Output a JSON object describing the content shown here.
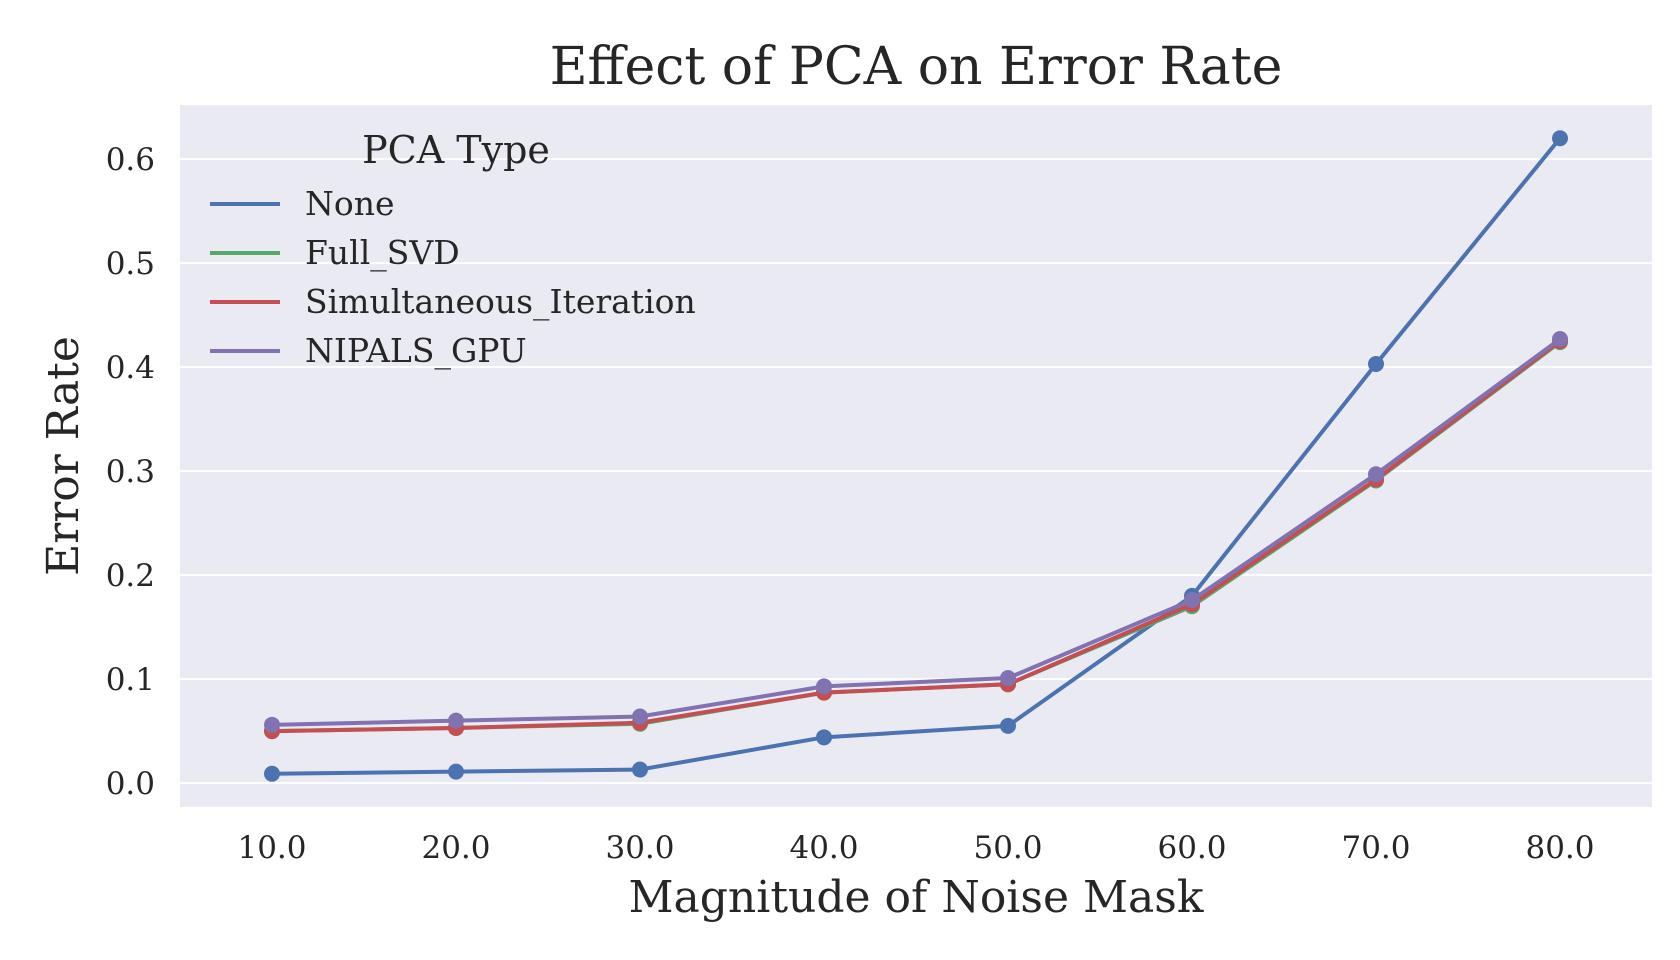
{
  "chart_data": {
    "type": "line",
    "title": "Effect of PCA on Error Rate",
    "xlabel": "Magnitude of Noise Mask",
    "ylabel": "Error Rate",
    "categories": [
      "10.0",
      "20.0",
      "30.0",
      "40.0",
      "50.0",
      "60.0",
      "70.0",
      "80.0"
    ],
    "ylim": [
      -0.023,
      0.652
    ],
    "yticks": [
      "0.0",
      "0.1",
      "0.2",
      "0.3",
      "0.4",
      "0.5",
      "0.6"
    ],
    "grid": true,
    "legend": {
      "title": "PCA Type",
      "placement": "top-left"
    },
    "series": [
      {
        "name": "None",
        "color": "#4c72b0",
        "values": [
          0.009,
          0.011,
          0.013,
          0.044,
          0.055,
          0.18,
          0.403,
          0.62
        ]
      },
      {
        "name": "Full_SVD",
        "color": "#55a868",
        "values": [
          0.05,
          0.053,
          0.057,
          0.087,
          0.095,
          0.17,
          0.291,
          0.424
        ]
      },
      {
        "name": "Simultaneous_Iteration",
        "color": "#c44e52",
        "values": [
          0.05,
          0.053,
          0.058,
          0.087,
          0.095,
          0.172,
          0.292,
          0.425
        ]
      },
      {
        "name": "NIPALS_GPU",
        "color": "#8172b2",
        "values": [
          0.056,
          0.06,
          0.064,
          0.093,
          0.101,
          0.176,
          0.297,
          0.427
        ]
      }
    ]
  }
}
